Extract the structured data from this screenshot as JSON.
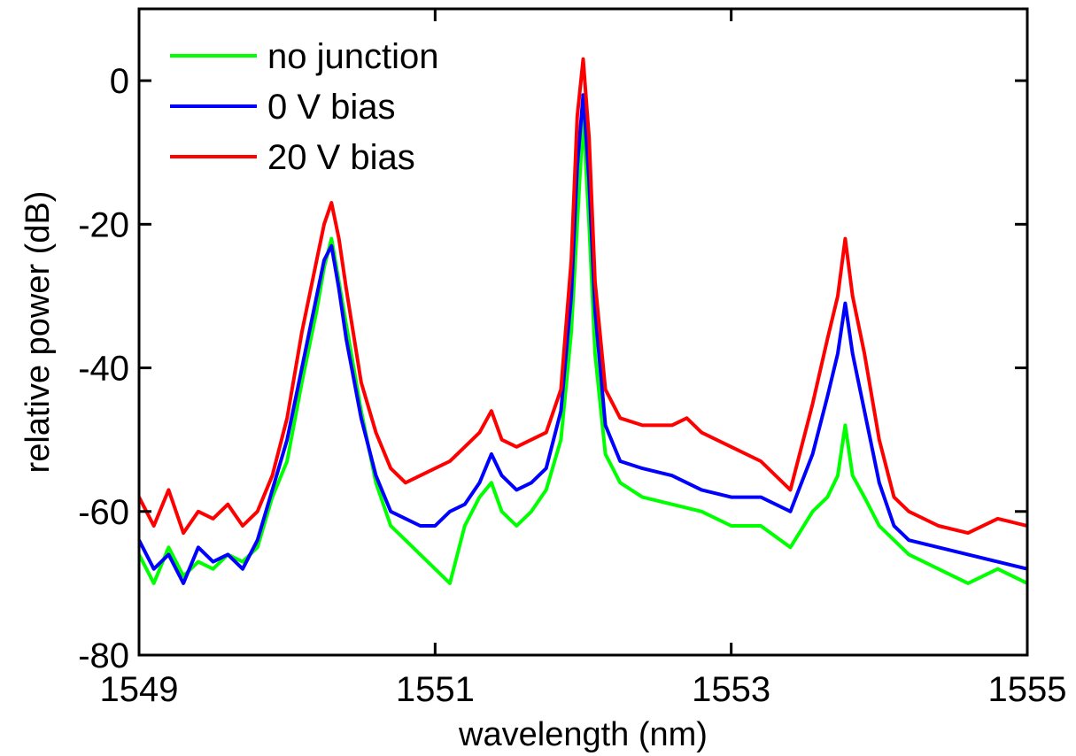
{
  "chart_data": {
    "type": "line",
    "title": "",
    "xlabel": "wavelength (nm)",
    "ylabel": "relative power (dB)",
    "xlim": [
      1549,
      1555
    ],
    "ylim": [
      -80,
      10
    ],
    "xticks": [
      1549,
      1551,
      1553,
      1555
    ],
    "yticks": [
      -80,
      -60,
      -40,
      -20,
      0
    ],
    "xtick_labels": [
      "1549",
      "1551",
      "1553",
      "1555"
    ],
    "ytick_labels": [
      "-80",
      "-60",
      "-40",
      "-20",
      "0"
    ],
    "grid": false,
    "legend_position": "top-left",
    "series": [
      {
        "name": "no junction",
        "color": "#00ff00",
        "x": [
          1549.0,
          1549.1,
          1549.2,
          1549.3,
          1549.4,
          1549.5,
          1549.6,
          1549.7,
          1549.8,
          1549.9,
          1550.0,
          1550.1,
          1550.2,
          1550.25,
          1550.3,
          1550.35,
          1550.4,
          1550.5,
          1550.6,
          1550.7,
          1550.8,
          1550.9,
          1551.0,
          1551.1,
          1551.2,
          1551.3,
          1551.38,
          1551.45,
          1551.55,
          1551.65,
          1551.75,
          1551.85,
          1551.92,
          1551.96,
          1552.0,
          1552.04,
          1552.08,
          1552.15,
          1552.25,
          1552.4,
          1552.6,
          1552.8,
          1553.0,
          1553.2,
          1553.4,
          1553.55,
          1553.65,
          1553.72,
          1553.77,
          1553.82,
          1553.9,
          1554.0,
          1554.1,
          1554.2,
          1554.4,
          1554.6,
          1554.8,
          1555.0
        ],
        "y": [
          -66,
          -70,
          -65,
          -69,
          -67,
          -68,
          -66,
          -67,
          -65,
          -58,
          -53,
          -42,
          -32,
          -26,
          -22,
          -28,
          -34,
          -46,
          -56,
          -62,
          -64,
          -66,
          -68,
          -70,
          -62,
          -58,
          -56,
          -60,
          -62,
          -60,
          -57,
          -50,
          -35,
          -20,
          -5,
          -20,
          -38,
          -52,
          -56,
          -58,
          -59,
          -60,
          -62,
          -62,
          -65,
          -60,
          -58,
          -55,
          -48,
          -55,
          -58,
          -62,
          -64,
          -66,
          -68,
          -70,
          -68,
          -70
        ]
      },
      {
        "name": "0 V bias",
        "color": "#0000ff",
        "x": [
          1549.0,
          1549.1,
          1549.2,
          1549.3,
          1549.4,
          1549.5,
          1549.6,
          1549.7,
          1549.8,
          1549.9,
          1550.0,
          1550.1,
          1550.2,
          1550.25,
          1550.3,
          1550.35,
          1550.4,
          1550.5,
          1550.6,
          1550.7,
          1550.8,
          1550.9,
          1551.0,
          1551.1,
          1551.2,
          1551.3,
          1551.38,
          1551.45,
          1551.55,
          1551.65,
          1551.75,
          1551.85,
          1551.92,
          1551.96,
          1552.0,
          1552.04,
          1552.08,
          1552.15,
          1552.25,
          1552.4,
          1552.6,
          1552.8,
          1553.0,
          1553.2,
          1553.4,
          1553.55,
          1553.65,
          1553.72,
          1553.77,
          1553.82,
          1553.9,
          1554.0,
          1554.1,
          1554.2,
          1554.4,
          1554.6,
          1554.8,
          1555.0
        ],
        "y": [
          -64,
          -68,
          -66,
          -70,
          -65,
          -67,
          -66,
          -68,
          -64,
          -57,
          -50,
          -40,
          -30,
          -25,
          -23,
          -29,
          -36,
          -47,
          -55,
          -60,
          -61,
          -62,
          -62,
          -60,
          -59,
          -56,
          -52,
          -55,
          -57,
          -56,
          -54,
          -46,
          -30,
          -12,
          -2,
          -14,
          -32,
          -48,
          -53,
          -54,
          -55,
          -57,
          -58,
          -58,
          -60,
          -52,
          -44,
          -38,
          -31,
          -38,
          -46,
          -56,
          -62,
          -64,
          -65,
          -66,
          -67,
          -68
        ]
      },
      {
        "name": "20 V bias",
        "color": "#ff0000",
        "x": [
          1549.0,
          1549.1,
          1549.2,
          1549.3,
          1549.4,
          1549.5,
          1549.6,
          1549.7,
          1549.8,
          1549.9,
          1550.0,
          1550.1,
          1550.2,
          1550.25,
          1550.3,
          1550.35,
          1550.4,
          1550.5,
          1550.6,
          1550.7,
          1550.8,
          1550.9,
          1551.0,
          1551.1,
          1551.2,
          1551.3,
          1551.38,
          1551.45,
          1551.55,
          1551.65,
          1551.75,
          1551.85,
          1551.92,
          1551.96,
          1552.0,
          1552.04,
          1552.08,
          1552.15,
          1552.25,
          1552.4,
          1552.6,
          1552.7,
          1552.8,
          1553.0,
          1553.2,
          1553.4,
          1553.55,
          1553.65,
          1553.72,
          1553.77,
          1553.82,
          1553.9,
          1554.0,
          1554.1,
          1554.2,
          1554.4,
          1554.6,
          1554.8,
          1555.0
        ],
        "y": [
          -58,
          -62,
          -57,
          -63,
          -60,
          -61,
          -59,
          -62,
          -60,
          -55,
          -47,
          -35,
          -25,
          -20,
          -17,
          -22,
          -29,
          -42,
          -49,
          -54,
          -56,
          -55,
          -54,
          -53,
          -51,
          -49,
          -46,
          -50,
          -51,
          -50,
          -49,
          -43,
          -25,
          -5,
          3,
          -8,
          -28,
          -43,
          -47,
          -48,
          -48,
          -47,
          -49,
          -51,
          -53,
          -57,
          -45,
          -36,
          -30,
          -22,
          -30,
          -38,
          -50,
          -58,
          -60,
          -62,
          -63,
          -61,
          -62
        ]
      }
    ]
  }
}
